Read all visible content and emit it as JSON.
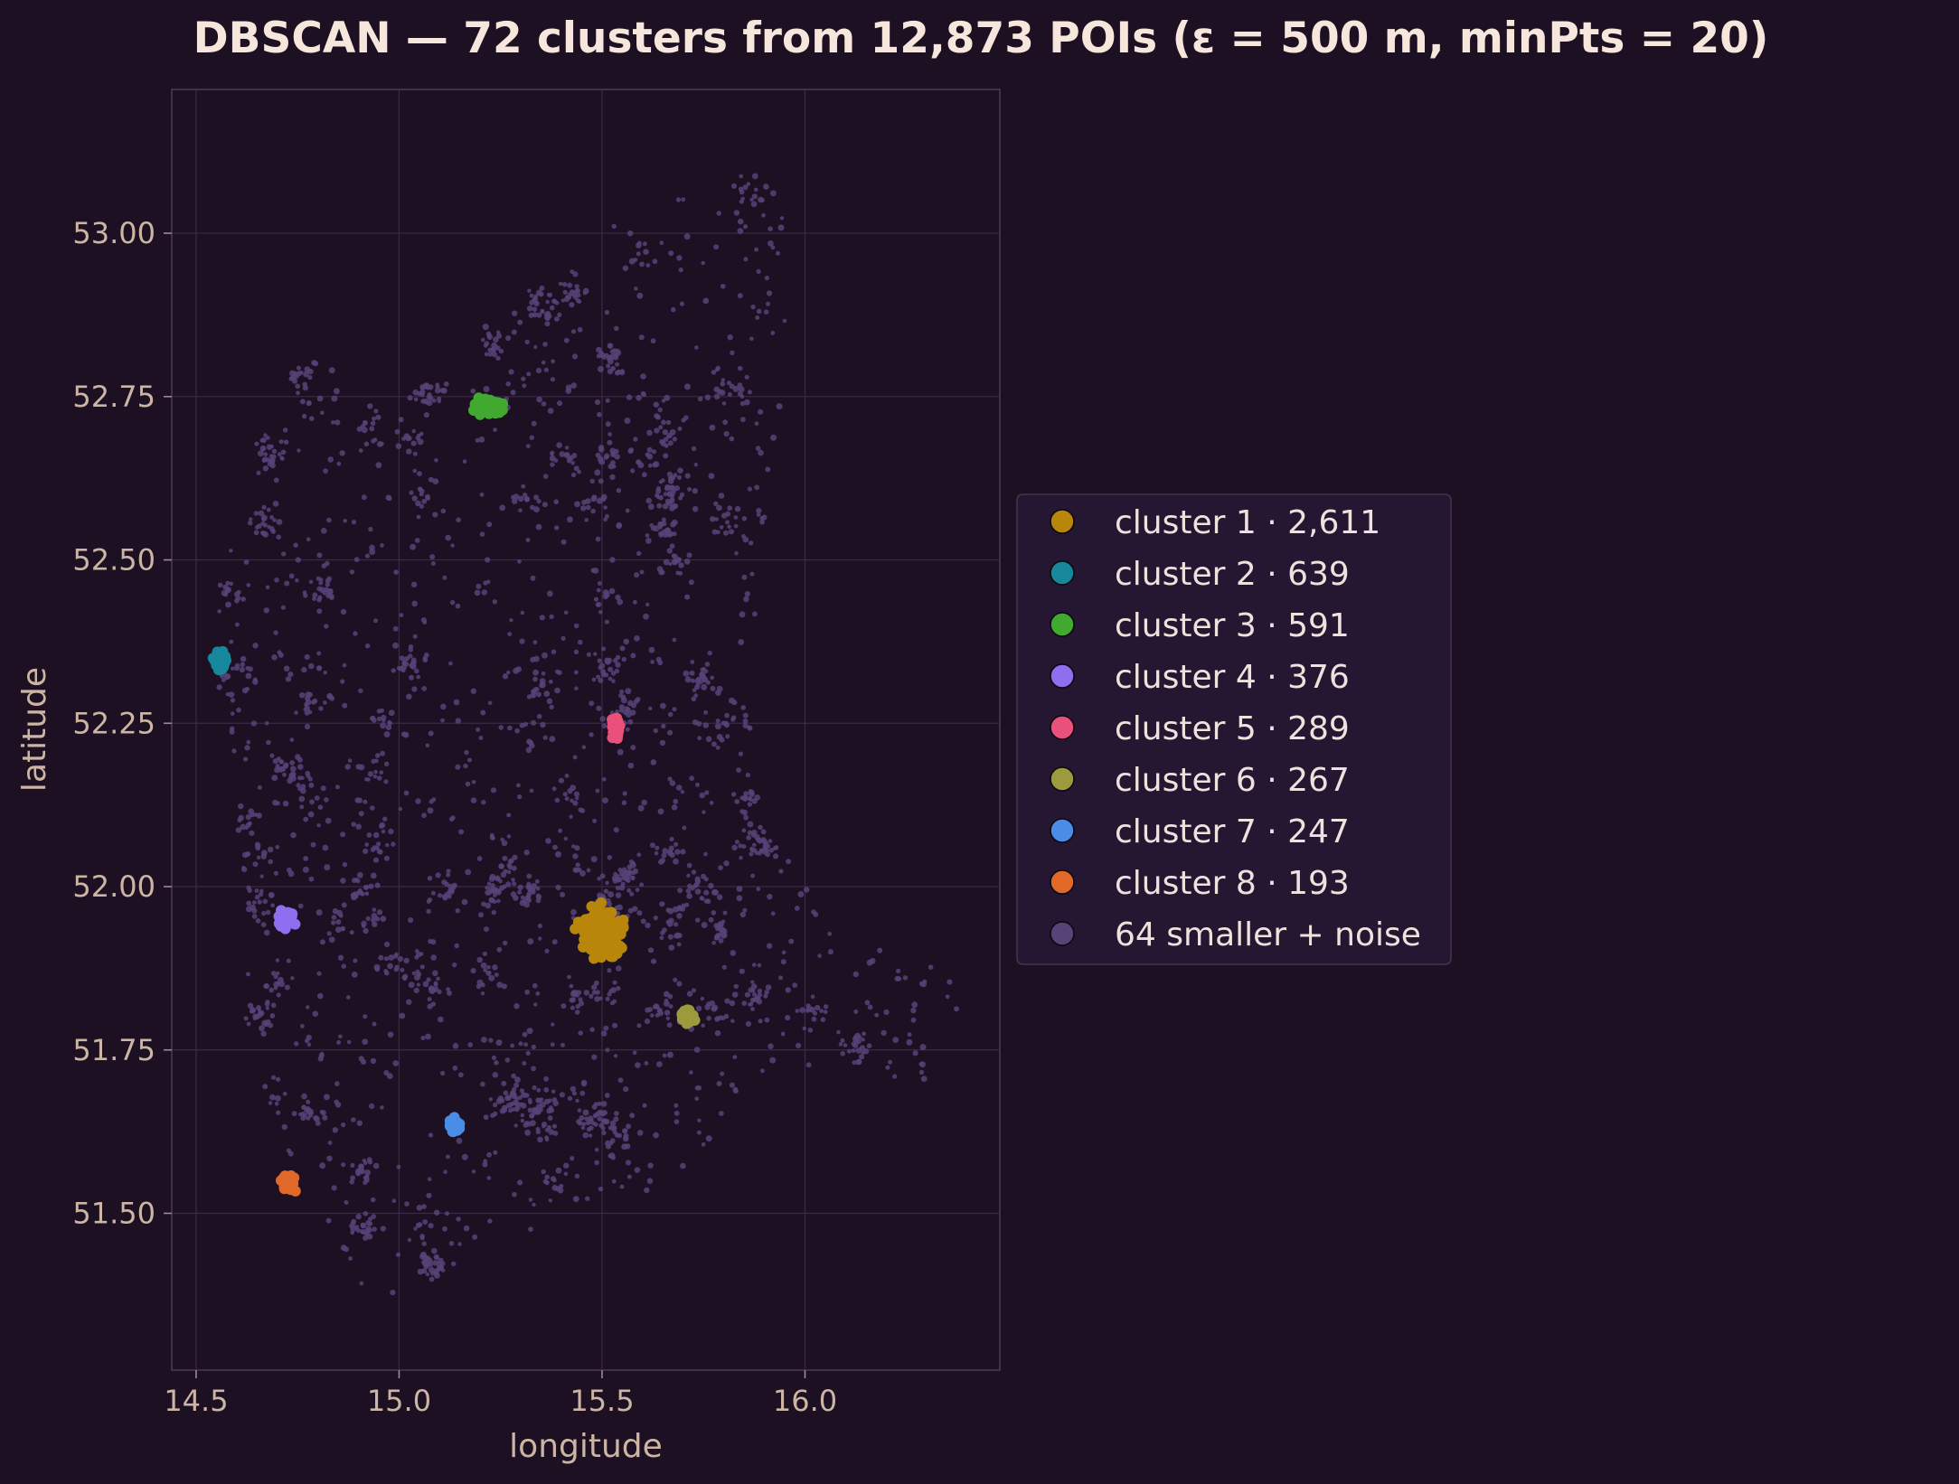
{
  "chart_data": {
    "type": "scatter",
    "title": "DBSCAN — 72 clusters from 12,873 POIs (ε = 500 m, minPts = 20)",
    "xlabel": "longitude",
    "ylabel": "latitude",
    "xlim": [
      14.44,
      16.48
    ],
    "ylim": [
      51.26,
      53.22
    ],
    "xticks": [
      14.5,
      15.0,
      15.5,
      16.0
    ],
    "xtick_labels": [
      "14.5",
      "15.0",
      "15.5",
      "16.0"
    ],
    "yticks": [
      51.5,
      51.75,
      52.0,
      52.25,
      52.5,
      52.75,
      53.0
    ],
    "ytick_labels": [
      "51.50",
      "51.75",
      "52.00",
      "52.25",
      "52.50",
      "52.75",
      "53.00"
    ],
    "grid": true,
    "legend": {
      "placement": "right"
    },
    "background_color": "#1c1022",
    "series": [
      {
        "name": "cluster 1 · 2,611",
        "color": "#b8860b",
        "center": [
          15.495,
          51.93
        ],
        "spread": [
          0.04,
          0.028
        ],
        "n": 260
      },
      {
        "name": "cluster 2 · 639",
        "color": "#17889c",
        "center": [
          14.56,
          52.345
        ],
        "spread": [
          0.013,
          0.012
        ],
        "n": 80
      },
      {
        "name": "cluster 3 · 591",
        "color": "#41a92f",
        "center": [
          15.225,
          52.735
        ],
        "spread": [
          0.028,
          0.009
        ],
        "n": 80
      },
      {
        "name": "cluster 4 · 376",
        "color": "#8f6ff0",
        "center": [
          14.72,
          51.95
        ],
        "spread": [
          0.016,
          0.01
        ],
        "n": 60
      },
      {
        "name": "cluster 5 · 289",
        "color": "#e9507a",
        "center": [
          15.535,
          52.245
        ],
        "spread": [
          0.008,
          0.011
        ],
        "n": 50
      },
      {
        "name": "cluster 6 · 267",
        "color": "#9c9a3c",
        "center": [
          15.71,
          51.8
        ],
        "spread": [
          0.013,
          0.007
        ],
        "n": 50
      },
      {
        "name": "cluster 7 · 247",
        "color": "#4a8de6",
        "center": [
          15.135,
          51.635
        ],
        "spread": [
          0.01,
          0.008
        ],
        "n": 45
      },
      {
        "name": "cluster 8 · 193",
        "color": "#e0692a",
        "center": [
          14.73,
          51.545
        ],
        "spread": [
          0.012,
          0.01
        ],
        "n": 45
      },
      {
        "name": "64 smaller + noise",
        "color": "#574378",
        "n": 2600
      }
    ]
  }
}
